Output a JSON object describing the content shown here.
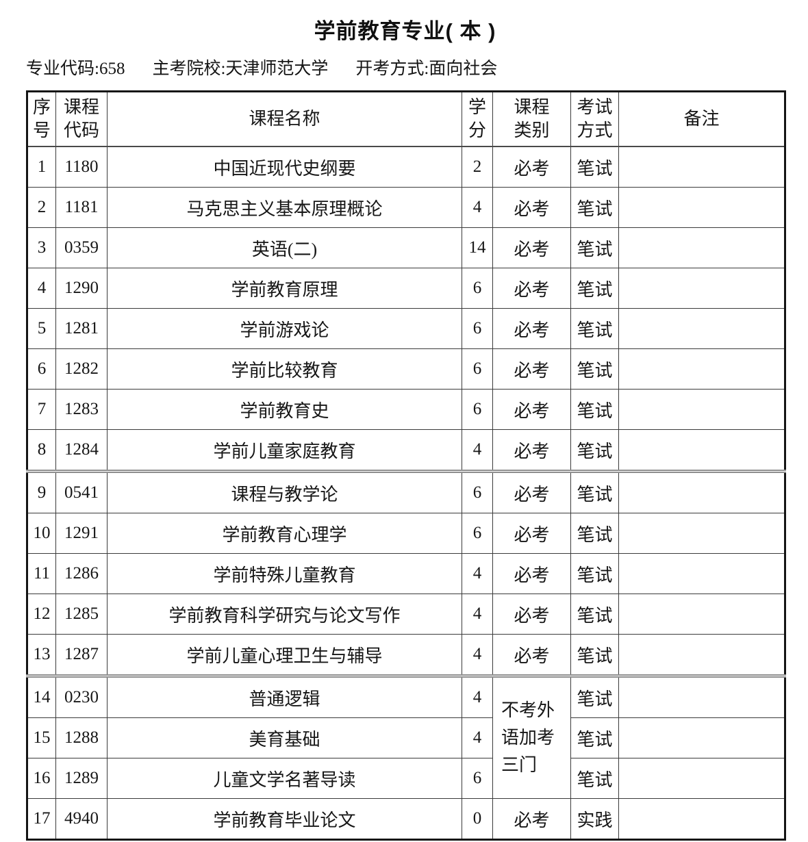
{
  "doc": {
    "title": "学前教育专业( 本 )",
    "meta": {
      "major_code": "专业代码:658",
      "host_university": "主考院校:天津师范大学",
      "exam_mode": "开考方式:面向社会"
    }
  },
  "table": {
    "headers": {
      "seq": "序\n号",
      "code": "课程\n代码",
      "name": "课程名称",
      "credits": "学\n分",
      "category": "课程\n类别",
      "exam": "考试\n方式",
      "note": "备注"
    },
    "merged_category": "不考外\n语加考\n三门",
    "rows": [
      {
        "num": "1",
        "code": "1180",
        "name": "中国近现代史纲要",
        "credits": "2",
        "category": "必考",
        "exam": "笔试",
        "note": ""
      },
      {
        "num": "2",
        "code": "1181",
        "name": "马克思主义基本原理概论",
        "credits": "4",
        "category": "必考",
        "exam": "笔试",
        "note": ""
      },
      {
        "num": "3",
        "code": "0359",
        "name": "英语(二)",
        "credits": "14",
        "category": "必考",
        "exam": "笔试",
        "note": ""
      },
      {
        "num": "4",
        "code": "1290",
        "name": "学前教育原理",
        "credits": "6",
        "category": "必考",
        "exam": "笔试",
        "note": ""
      },
      {
        "num": "5",
        "code": "1281",
        "name": "学前游戏论",
        "credits": "6",
        "category": "必考",
        "exam": "笔试",
        "note": ""
      },
      {
        "num": "6",
        "code": "1282",
        "name": "学前比较教育",
        "credits": "6",
        "category": "必考",
        "exam": "笔试",
        "note": ""
      },
      {
        "num": "7",
        "code": "1283",
        "name": "学前教育史",
        "credits": "6",
        "category": "必考",
        "exam": "笔试",
        "note": ""
      },
      {
        "num": "8",
        "code": "1284",
        "name": "学前儿童家庭教育",
        "credits": "4",
        "category": "必考",
        "exam": "笔试",
        "note": ""
      },
      {
        "num": "9",
        "code": "0541",
        "name": "课程与教学论",
        "credits": "6",
        "category": "必考",
        "exam": "笔试",
        "note": ""
      },
      {
        "num": "10",
        "code": "1291",
        "name": "学前教育心理学",
        "credits": "6",
        "category": "必考",
        "exam": "笔试",
        "note": ""
      },
      {
        "num": "11",
        "code": "1286",
        "name": "学前特殊儿童教育",
        "credits": "4",
        "category": "必考",
        "exam": "笔试",
        "note": ""
      },
      {
        "num": "12",
        "code": "1285",
        "name": "学前教育科学研究与论文写作",
        "credits": "4",
        "category": "必考",
        "exam": "笔试",
        "note": ""
      },
      {
        "num": "13",
        "code": "1287",
        "name": "学前儿童心理卫生与辅导",
        "credits": "4",
        "category": "必考",
        "exam": "笔试",
        "note": ""
      },
      {
        "num": "14",
        "code": "0230",
        "name": "普通逻辑",
        "credits": "4",
        "category": null,
        "exam": "笔试",
        "note": ""
      },
      {
        "num": "15",
        "code": "1288",
        "name": "美育基础",
        "credits": "4",
        "category": null,
        "exam": "笔试",
        "note": ""
      },
      {
        "num": "16",
        "code": "1289",
        "name": "儿童文学名著导读",
        "credits": "6",
        "category": null,
        "exam": "笔试",
        "note": ""
      },
      {
        "num": "17",
        "code": "4940",
        "name": "学前教育毕业论文",
        "credits": "0",
        "category": "必考",
        "exam": "实践",
        "note": ""
      }
    ]
  }
}
